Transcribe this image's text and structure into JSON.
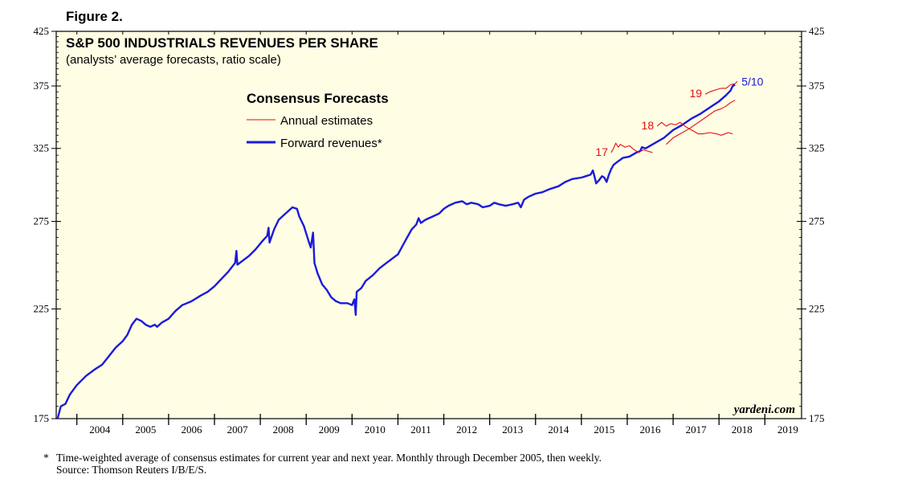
{
  "figure_label": "Figure 2.",
  "footnote": {
    "star": "*",
    "note": "Time-weighted average of consensus estimates for current year and next year. Monthly through December 2005, then weekly.",
    "source": "Source: Thomson Reuters I/B/E/S."
  },
  "chart_data": {
    "type": "line",
    "title": "S&P 500 INDUSTRIALS REVENUES PER SHARE",
    "subtitle": "(analysts’ average forecasts, ratio scale)",
    "yscale": "log",
    "ylim": [
      175,
      425
    ],
    "yticks": [
      175,
      225,
      275,
      325,
      375,
      425
    ],
    "xlim": [
      2003.55,
      2019.8
    ],
    "xtick_labels": [
      "2004",
      "2005",
      "2006",
      "2007",
      "2008",
      "2009",
      "2010",
      "2011",
      "2012",
      "2013",
      "2014",
      "2015",
      "2016",
      "2017",
      "2018",
      "2019"
    ],
    "legend": {
      "title": "Consensus Forecasts",
      "placement": "top-left",
      "entries": [
        {
          "label": "Annual estimates",
          "color": "#e01010"
        },
        {
          "label": "Forward revenues*",
          "color": "#1a1adc"
        }
      ]
    },
    "watermark": "yardeni.com",
    "series": [
      {
        "name": "Forward revenues*",
        "color": "#1a1adc",
        "points": [
          [
            2003.58,
            175
          ],
          [
            2003.65,
            180
          ],
          [
            2003.75,
            181
          ],
          [
            2003.85,
            185
          ],
          [
            2004.0,
            189
          ],
          [
            2004.2,
            193
          ],
          [
            2004.4,
            196
          ],
          [
            2004.55,
            198
          ],
          [
            2004.7,
            202
          ],
          [
            2004.85,
            206
          ],
          [
            2005.0,
            209
          ],
          [
            2005.1,
            212
          ],
          [
            2005.2,
            217
          ],
          [
            2005.3,
            220
          ],
          [
            2005.4,
            219
          ],
          [
            2005.5,
            217
          ],
          [
            2005.6,
            216
          ],
          [
            2005.7,
            217
          ],
          [
            2005.75,
            216
          ],
          [
            2005.85,
            218
          ],
          [
            2006.0,
            220
          ],
          [
            2006.15,
            224
          ],
          [
            2006.3,
            227
          ],
          [
            2006.5,
            229
          ],
          [
            2006.7,
            232
          ],
          [
            2006.85,
            234
          ],
          [
            2007.0,
            237
          ],
          [
            2007.15,
            241
          ],
          [
            2007.3,
            245
          ],
          [
            2007.45,
            250
          ],
          [
            2007.48,
            257
          ],
          [
            2007.5,
            249
          ],
          [
            2007.6,
            251
          ],
          [
            2007.75,
            254
          ],
          [
            2007.9,
            258
          ],
          [
            2008.05,
            263
          ],
          [
            2008.15,
            266
          ],
          [
            2008.18,
            271
          ],
          [
            2008.2,
            262
          ],
          [
            2008.3,
            270
          ],
          [
            2008.4,
            276
          ],
          [
            2008.55,
            280
          ],
          [
            2008.7,
            284
          ],
          [
            2008.8,
            283
          ],
          [
            2008.85,
            278
          ],
          [
            2008.95,
            272
          ],
          [
            2009.05,
            263
          ],
          [
            2009.1,
            259
          ],
          [
            2009.15,
            268
          ],
          [
            2009.18,
            250
          ],
          [
            2009.25,
            244
          ],
          [
            2009.35,
            238
          ],
          [
            2009.45,
            235
          ],
          [
            2009.55,
            231
          ],
          [
            2009.65,
            229
          ],
          [
            2009.75,
            228
          ],
          [
            2009.9,
            228
          ],
          [
            2010.0,
            227
          ],
          [
            2010.05,
            230
          ],
          [
            2010.08,
            222
          ],
          [
            2010.1,
            234
          ],
          [
            2010.2,
            236
          ],
          [
            2010.3,
            240
          ],
          [
            2010.45,
            243
          ],
          [
            2010.6,
            247
          ],
          [
            2010.75,
            250
          ],
          [
            2010.9,
            253
          ],
          [
            2011.0,
            255
          ],
          [
            2011.1,
            260
          ],
          [
            2011.2,
            265
          ],
          [
            2011.3,
            270
          ],
          [
            2011.4,
            273
          ],
          [
            2011.45,
            277
          ],
          [
            2011.5,
            274
          ],
          [
            2011.6,
            276
          ],
          [
            2011.75,
            278
          ],
          [
            2011.9,
            280
          ],
          [
            2012.0,
            283
          ],
          [
            2012.1,
            285
          ],
          [
            2012.25,
            287
          ],
          [
            2012.4,
            288
          ],
          [
            2012.5,
            286
          ],
          [
            2012.6,
            287
          ],
          [
            2012.75,
            286
          ],
          [
            2012.85,
            284
          ],
          [
            2013.0,
            285
          ],
          [
            2013.1,
            287
          ],
          [
            2013.2,
            286
          ],
          [
            2013.35,
            285
          ],
          [
            2013.5,
            286
          ],
          [
            2013.62,
            287
          ],
          [
            2013.68,
            284
          ],
          [
            2013.75,
            289
          ],
          [
            2013.85,
            291
          ],
          [
            2014.0,
            293
          ],
          [
            2014.15,
            294
          ],
          [
            2014.3,
            296
          ],
          [
            2014.5,
            298
          ],
          [
            2014.65,
            301
          ],
          [
            2014.8,
            303
          ],
          [
            2015.0,
            304
          ],
          [
            2015.1,
            305
          ],
          [
            2015.2,
            306
          ],
          [
            2015.25,
            309
          ],
          [
            2015.3,
            303
          ],
          [
            2015.32,
            300
          ],
          [
            2015.38,
            302
          ],
          [
            2015.45,
            305
          ],
          [
            2015.5,
            304
          ],
          [
            2015.55,
            301
          ],
          [
            2015.6,
            306
          ],
          [
            2015.65,
            310
          ],
          [
            2015.7,
            313
          ],
          [
            2015.78,
            315
          ],
          [
            2015.9,
            318
          ],
          [
            2016.05,
            319
          ],
          [
            2016.2,
            322
          ],
          [
            2016.28,
            323
          ],
          [
            2016.32,
            326
          ],
          [
            2016.4,
            325
          ],
          [
            2016.6,
            329
          ],
          [
            2016.8,
            333
          ],
          [
            2017.0,
            339
          ],
          [
            2017.2,
            343
          ],
          [
            2017.4,
            348
          ],
          [
            2017.6,
            352
          ],
          [
            2017.8,
            357
          ],
          [
            2018.0,
            362
          ],
          [
            2018.15,
            367
          ],
          [
            2018.25,
            371
          ],
          [
            2018.3,
            375
          ],
          [
            2018.35,
            376
          ]
        ]
      },
      {
        "name": "",
        "color": "#e01010",
        "label": "17",
        "points": [
          [
            2015.65,
            322
          ],
          [
            2015.7,
            325
          ],
          [
            2015.75,
            329
          ],
          [
            2015.8,
            326
          ],
          [
            2015.85,
            328
          ],
          [
            2015.95,
            326
          ],
          [
            2016.05,
            327
          ],
          [
            2016.15,
            324
          ],
          [
            2016.25,
            322
          ],
          [
            2016.35,
            324
          ],
          [
            2016.45,
            323
          ],
          [
            2016.55,
            322
          ]
        ]
      },
      {
        "name": "",
        "color": "#e01010",
        "label": "18",
        "points": [
          [
            2016.65,
            342
          ],
          [
            2016.75,
            345
          ],
          [
            2016.85,
            342
          ],
          [
            2016.95,
            344
          ],
          [
            2017.05,
            343
          ],
          [
            2017.15,
            345
          ],
          [
            2017.3,
            341
          ],
          [
            2017.45,
            338
          ],
          [
            2017.55,
            336
          ],
          [
            2017.65,
            336
          ],
          [
            2017.8,
            337
          ],
          [
            2017.95,
            336
          ],
          [
            2018.05,
            335
          ],
          [
            2018.2,
            337
          ],
          [
            2018.3,
            336
          ]
        ]
      },
      {
        "name": "",
        "color": "#e01010",
        "label": "19",
        "points": [
          [
            2017.7,
            368
          ],
          [
            2017.8,
            370
          ],
          [
            2017.95,
            372
          ],
          [
            2018.05,
            373
          ],
          [
            2018.15,
            373
          ],
          [
            2018.25,
            376
          ],
          [
            2018.35,
            377
          ],
          [
            2018.4,
            379
          ]
        ]
      },
      {
        "name": "",
        "color": "#e01010",
        "points": [
          [
            2016.85,
            328
          ],
          [
            2017.0,
            333
          ],
          [
            2017.15,
            336
          ],
          [
            2017.35,
            340
          ],
          [
            2017.55,
            345
          ],
          [
            2017.75,
            350
          ],
          [
            2017.9,
            354
          ],
          [
            2018.05,
            356
          ],
          [
            2018.15,
            358
          ],
          [
            2018.25,
            361
          ],
          [
            2018.35,
            363
          ]
        ]
      }
    ],
    "annotations": [
      {
        "text": "5/10",
        "x": 2018.35,
        "y": 376,
        "color": "#1a1adc"
      }
    ]
  }
}
